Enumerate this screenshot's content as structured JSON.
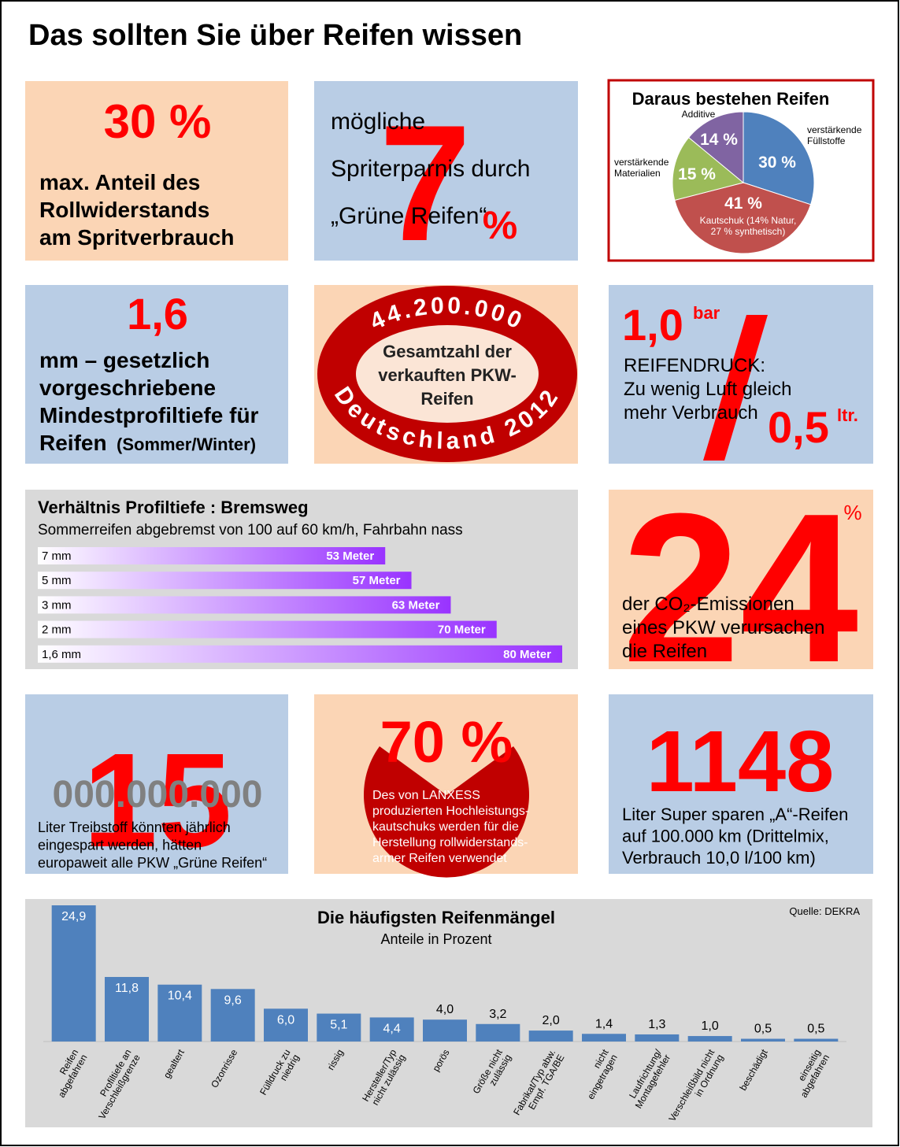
{
  "title": "Das sollten Sie über Reifen wissen",
  "rolling": {
    "value": "30 %",
    "lines": [
      "max. Anteil des",
      "Rollwiderstands",
      "am Spritverbrauch"
    ]
  },
  "savings": {
    "number": "7",
    "unit": "%",
    "lines": [
      "mögliche",
      "Spriterparnis  durch",
      "„Grüne Reifen“"
    ]
  },
  "composition": {
    "type": "pie",
    "title": "Daraus bestehen Reifen",
    "categories": [
      [
        "verstärkende",
        "Füllstoffe"
      ],
      [
        "Kautschuk (14% Natur,",
        "27 % synthetisch)"
      ],
      [
        "verstärkende",
        "Materialien"
      ],
      [
        "Additive"
      ]
    ],
    "values": [
      30,
      41,
      15,
      14
    ],
    "value_labels": [
      "30 %",
      "41 %",
      "15 %",
      "14 %"
    ],
    "colors": [
      "#4f81bd",
      "#c0504d",
      "#9bbb59",
      "#8064a2"
    ]
  },
  "tread": {
    "value": "1,6",
    "lines": [
      "mm – gesetzlich",
      "vorgeschriebene",
      "Mindestprofiltiefe für",
      "Reifen"
    ],
    "note": "(Sommer/Winter)"
  },
  "sales": {
    "number": "44.200.000",
    "lines": [
      "Gesamtzahl der",
      "verkauften PKW-",
      "Reifen"
    ],
    "bottom": "Deutschland 2012"
  },
  "pressure": {
    "value": "1,0",
    "unit": "bar",
    "lines": [
      "REIFENDRUCK:",
      "Zu wenig Luft gleich",
      "mehr Verbrauch"
    ],
    "result": "0,5",
    "result_unit": "ltr."
  },
  "braking": {
    "type": "bar",
    "title": "Verhältnis Profiltiefe : Bremsweg",
    "subtitle": "Sommerreifen abgebremst von 100 auf 60 km/h,  Fahrbahn nass",
    "categories": [
      "7 mm",
      "5 mm",
      "3 mm",
      "2 mm",
      "1,6 mm"
    ],
    "values": [
      53,
      57,
      63,
      70,
      80
    ],
    "value_labels": [
      "53 Meter",
      "57 Meter",
      "63 Meter",
      "70 Meter",
      "80 Meter"
    ],
    "color": "#9933ff"
  },
  "co2": {
    "number": "24",
    "unit": "%",
    "lines": [
      "der CO₂-Emissionen",
      "eines PKW verursachen",
      "die Reifen"
    ]
  },
  "fuel": {
    "number": "15",
    "zeros": "000.000.000",
    "lines": [
      "Liter Treibstoff könnten jährlich",
      "eingespart werden, hätten",
      "europaweit alle PKW „Grüne Reifen“"
    ]
  },
  "rubber": {
    "number": "70 %",
    "lines": [
      "Des von  LANXESS",
      "produzierten  Hochleistungs-",
      "kautschuks  werden  für die",
      "Herstellung  rollwiderstands-",
      "armer Reifen verwendet"
    ]
  },
  "litres": {
    "number": "1148",
    "lines": [
      "Liter Super sparen „A“-Reifen",
      "auf 100.000 km (Drittelmix,",
      "Verbrauch 10,0 l/100 km)"
    ]
  },
  "defects": {
    "type": "bar",
    "title": "Die häufigsten Reifenmängel",
    "subtitle": "Anteile in Prozent",
    "source": "Quelle: DEKRA",
    "categories": [
      [
        "Reifen",
        "abgefahren"
      ],
      [
        "Profiltiefe an",
        "Verschleißgrenze"
      ],
      [
        "gealtert"
      ],
      [
        "Ozonrisse"
      ],
      [
        "Fülldruck zu",
        "niedrig"
      ],
      [
        "rissig"
      ],
      [
        "Hersteller/Typ",
        "nicht zulässig"
      ],
      [
        "porös"
      ],
      [
        "Größe nicht",
        "zulässig"
      ],
      [
        "Fabrikat/Typ abw.",
        "Empf. TGA/BE"
      ],
      [
        "nicht",
        "eingetragen"
      ],
      [
        "Laufrichtung/",
        "Montagefehler"
      ],
      [
        "Verschleißbild nicht",
        "in Ordnung"
      ],
      [
        "beschädigt"
      ],
      [
        "einseitig",
        "abgefahren"
      ]
    ],
    "values": [
      24.9,
      11.8,
      10.4,
      9.6,
      6.0,
      5.1,
      4.4,
      4.0,
      3.2,
      2.0,
      1.4,
      1.3,
      1.0,
      0.5,
      0.5
    ],
    "value_labels": [
      "24,9",
      "11,8",
      "10,4",
      "9,6",
      "6,0",
      "5,1",
      "4,4",
      "4,0",
      "3,2",
      "2,0",
      "1,4",
      "1,3",
      "1,0",
      "0,5",
      "0,5"
    ],
    "color": "#4f81bd"
  }
}
